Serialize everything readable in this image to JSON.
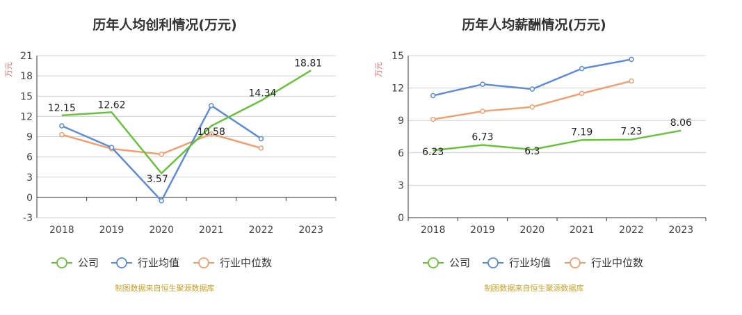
{
  "colors": {
    "company": "#67c23a",
    "industry_avg": "#5b8bd9",
    "industry_median": "#f0a070"
  },
  "chart_data": [
    {
      "type": "line",
      "title": "历年人均创利情况(万元)",
      "ylabel": "万元",
      "categories": [
        "2018",
        "2019",
        "2020",
        "2021",
        "2022",
        "2023"
      ],
      "y_ticks": [
        "21",
        "18",
        "15",
        "12",
        "9",
        "6",
        "3",
        "0",
        "-3"
      ],
      "ylim": [
        -3,
        21
      ],
      "series": [
        {
          "name": "公司",
          "values": [
            12.15,
            12.62,
            3.57,
            10.58,
            14.34,
            18.81
          ],
          "labels": [
            "12.15",
            "12.62",
            "3.57",
            "10.58",
            "14.34",
            "18.81"
          ]
        },
        {
          "name": "行业均值",
          "values": [
            10.6,
            7.4,
            -0.5,
            13.6,
            8.7,
            null
          ]
        },
        {
          "name": "行业中位数",
          "values": [
            9.3,
            7.2,
            6.4,
            9.4,
            7.3,
            null
          ]
        }
      ],
      "legend": [
        "公司",
        "行业均值",
        "行业中位数"
      ],
      "source": "制图数据来自恒生聚源数据库"
    },
    {
      "type": "line",
      "title": "历年人均薪酬情况(万元)",
      "ylabel": "万元",
      "categories": [
        "2018",
        "2019",
        "2020",
        "2021",
        "2022",
        "2023"
      ],
      "y_ticks": [
        "15",
        "12",
        "9",
        "6",
        "3",
        "0"
      ],
      "ylim": [
        0,
        15
      ],
      "series": [
        {
          "name": "公司",
          "values": [
            6.23,
            6.73,
            6.3,
            7.19,
            7.23,
            8.06
          ],
          "labels": [
            "6.23",
            "6.73",
            "6.3",
            "7.19",
            "7.23",
            "8.06"
          ]
        },
        {
          "name": "行业均值",
          "values": [
            11.3,
            12.35,
            11.9,
            13.8,
            14.65,
            null
          ]
        },
        {
          "name": "行业中位数",
          "values": [
            9.1,
            9.85,
            10.25,
            11.5,
            12.65,
            null
          ]
        }
      ],
      "legend": [
        "公司",
        "行业均值",
        "行业中位数"
      ],
      "source": "制图数据来自恒生聚源数据库"
    }
  ]
}
